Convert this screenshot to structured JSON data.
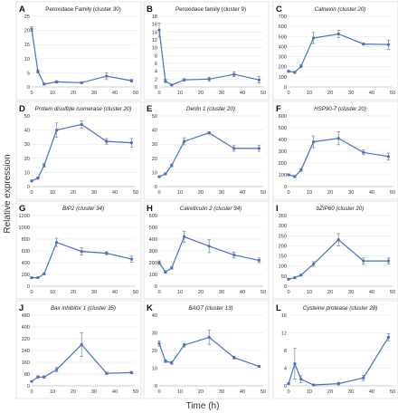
{
  "ylabel": "Relative expression",
  "xlabel": "Time (h)",
  "line_color": "#4472c4",
  "chart_data": [
    {
      "letter": "A",
      "title": "Peroxidase Family (cluster 30)",
      "title_italic": false,
      "type": "line",
      "x": [
        0,
        3,
        6,
        12,
        24,
        36,
        48
      ],
      "y": [
        20.5,
        5.5,
        1.0,
        1.8,
        1.5,
        3.8,
        2.2
      ],
      "err": [
        0.8,
        0.6,
        0.3,
        0.4,
        0.3,
        1.2,
        0.5
      ],
      "ylim": [
        0,
        25
      ],
      "yticks": [
        "0",
        "5",
        "10",
        "15",
        "20",
        "25"
      ],
      "xlim": [
        0,
        50
      ],
      "xticks": [
        "0",
        "10",
        "20",
        "30",
        "40",
        "50"
      ]
    },
    {
      "letter": "B",
      "title": "Peroxidase family (cluster 9)",
      "title_italic": false,
      "type": "line",
      "x": [
        0,
        3,
        6,
        12,
        24,
        36,
        48
      ],
      "y": [
        14.5,
        1.5,
        0.5,
        1.8,
        2.0,
        3.2,
        1.8
      ],
      "err": [
        1.8,
        0.4,
        0.2,
        0.3,
        0.5,
        0.6,
        0.8
      ],
      "ylim": [
        0,
        18
      ],
      "yticks": [
        "0",
        "2",
        "4",
        "6",
        "8",
        "10",
        "12",
        "14",
        "16",
        "18"
      ],
      "xlim": [
        0,
        50
      ],
      "xticks": [
        "0",
        "10",
        "20",
        "30",
        "40",
        "50"
      ]
    },
    {
      "letter": "C",
      "title": "Calnexin (cluster 20)",
      "title_italic": true,
      "type": "line",
      "x": [
        0,
        3,
        6,
        12,
        24,
        36,
        48
      ],
      "y": [
        155,
        145,
        205,
        485,
        525,
        425,
        420
      ],
      "err": [
        10,
        10,
        15,
        55,
        35,
        10,
        45
      ],
      "ylim": [
        0,
        700
      ],
      "yticks": [
        "0",
        "100",
        "200",
        "300",
        "400",
        "500",
        "600",
        "700"
      ],
      "xlim": [
        0,
        50
      ],
      "xticks": [
        "0",
        "10",
        "20",
        "30",
        "40",
        "50"
      ]
    },
    {
      "letter": "D",
      "title": "Protein disulfide isomerase (cluster 20)",
      "title_italic": true,
      "type": "line",
      "x": [
        0,
        3,
        6,
        12,
        24,
        36,
        48
      ],
      "y": [
        4,
        6,
        15,
        40,
        44,
        32,
        31
      ],
      "err": [
        0.5,
        0.8,
        1.2,
        5,
        2.5,
        2,
        3
      ],
      "ylim": [
        0,
        50
      ],
      "yticks": [
        "0",
        "10",
        "20",
        "30",
        "40",
        "50"
      ],
      "xlim": [
        0,
        50
      ],
      "xticks": [
        "0",
        "10",
        "20",
        "30",
        "40",
        "50"
      ]
    },
    {
      "letter": "E",
      "title": "Derlin 1 (cluster 20)",
      "title_italic": true,
      "type": "line",
      "x": [
        0,
        3,
        6,
        12,
        24,
        36,
        48
      ],
      "y": [
        7,
        9,
        15,
        32,
        38,
        27,
        27
      ],
      "err": [
        0.5,
        0.6,
        1,
        2.5,
        0.8,
        2,
        2
      ],
      "ylim": [
        0,
        50
      ],
      "yticks": [
        "0",
        "10",
        "20",
        "30",
        "40",
        "50"
      ],
      "xlim": [
        0,
        50
      ],
      "xticks": [
        "0",
        "10",
        "20",
        "30",
        "40",
        "50"
      ]
    },
    {
      "letter": "F",
      "title": "HSP90-7 (cluster 20)",
      "title_italic": true,
      "type": "line",
      "x": [
        0,
        3,
        6,
        12,
        24,
        36,
        48
      ],
      "y": [
        100,
        85,
        140,
        380,
        410,
        290,
        255
      ],
      "err": [
        8,
        8,
        10,
        50,
        55,
        20,
        30
      ],
      "ylim": [
        0,
        600
      ],
      "yticks": [
        "0",
        "100",
        "200",
        "300",
        "400",
        "500",
        "600"
      ],
      "xlim": [
        0,
        50
      ],
      "xticks": [
        "0",
        "10",
        "20",
        "30",
        "40",
        "50"
      ]
    },
    {
      "letter": "G",
      "title": "BIP2 (cluster 34)",
      "title_italic": true,
      "type": "line",
      "x": [
        0,
        3,
        6,
        12,
        24,
        36,
        48
      ],
      "y": [
        145,
        145,
        210,
        745,
        590,
        560,
        460
      ],
      "err": [
        10,
        10,
        15,
        70,
        60,
        25,
        50
      ],
      "ylim": [
        0,
        1200
      ],
      "yticks": [
        "0",
        "200",
        "400",
        "600",
        "800",
        "1000",
        "1200"
      ],
      "xlim": [
        0,
        50
      ],
      "xticks": [
        "0",
        "10",
        "20",
        "30",
        "40",
        "50"
      ]
    },
    {
      "letter": "H",
      "title": "Calreticulin 2 (cluster 34)",
      "title_italic": true,
      "type": "line",
      "x": [
        0,
        3,
        6,
        12,
        24,
        36,
        48
      ],
      "y": [
        200,
        120,
        155,
        420,
        340,
        265,
        220
      ],
      "err": [
        15,
        10,
        10,
        45,
        55,
        25,
        20
      ],
      "ylim": [
        0,
        600
      ],
      "yticks": [
        "0",
        "100",
        "200",
        "300",
        "400",
        "500",
        "600"
      ],
      "xlim": [
        0,
        50
      ],
      "xticks": [
        "0",
        "10",
        "20",
        "30",
        "40",
        "50"
      ]
    },
    {
      "letter": "I",
      "title": "bZIP60 (cluster 20)",
      "title_italic": true,
      "type": "line",
      "x": [
        0,
        3,
        6,
        12,
        24,
        36,
        48
      ],
      "y": [
        35,
        42,
        55,
        110,
        230,
        125,
        125
      ],
      "err": [
        3,
        3,
        5,
        12,
        30,
        15,
        15
      ],
      "ylim": [
        0,
        350
      ],
      "yticks": [
        "0",
        "50",
        "100",
        "150",
        "200",
        "250",
        "300",
        "350"
      ],
      "xlim": [
        0,
        50
      ],
      "xticks": [
        "0",
        "10",
        "20",
        "30",
        "40",
        "50"
      ]
    },
    {
      "letter": "J",
      "title": "Bax inhibitor 1 (cluster 35)",
      "title_italic": true,
      "type": "line",
      "x": [
        0,
        3,
        6,
        12,
        24,
        36,
        48
      ],
      "y": [
        30,
        60,
        60,
        110,
        280,
        85,
        90
      ],
      "err": [
        5,
        8,
        8,
        15,
        80,
        8,
        8
      ],
      "ylim": [
        0,
        480
      ],
      "yticks": [
        "0",
        "80",
        "160",
        "240",
        "320",
        "400",
        "480"
      ],
      "xlim": [
        0,
        50
      ],
      "xticks": [
        "0",
        "10",
        "20",
        "30",
        "40",
        "50"
      ]
    },
    {
      "letter": "K",
      "title": "BAG7 (cluster 13)",
      "title_italic": true,
      "type": "line",
      "x": [
        0,
        3,
        6,
        12,
        24,
        36,
        48
      ],
      "y": [
        24,
        14,
        13,
        23,
        27.5,
        16,
        11
      ],
      "err": [
        1.5,
        0.8,
        0.8,
        1,
        4,
        0.8,
        0.5
      ],
      "ylim": [
        0,
        40
      ],
      "yticks": [
        "0",
        "10",
        "20",
        "30",
        "40"
      ],
      "xlim": [
        0,
        50
      ],
      "xticks": [
        "0",
        "10",
        "20",
        "30",
        "40",
        "50"
      ]
    },
    {
      "letter": "L",
      "title": "Cysteine protease (cluster 28)",
      "title_italic": true,
      "type": "line",
      "x": [
        0,
        3,
        6,
        12,
        24,
        36,
        48
      ],
      "y": [
        0.5,
        5,
        1.5,
        0.2,
        0.5,
        1.8,
        11
      ],
      "err": [
        0.2,
        3.5,
        0.8,
        0.1,
        0.3,
        0.6,
        0.8
      ],
      "ylim": [
        0,
        16
      ],
      "yticks": [
        "0",
        "4",
        "8",
        "12",
        "16"
      ],
      "xlim": [
        0,
        50
      ],
      "xticks": [
        "0",
        "10",
        "20",
        "30",
        "40",
        "50"
      ]
    }
  ]
}
